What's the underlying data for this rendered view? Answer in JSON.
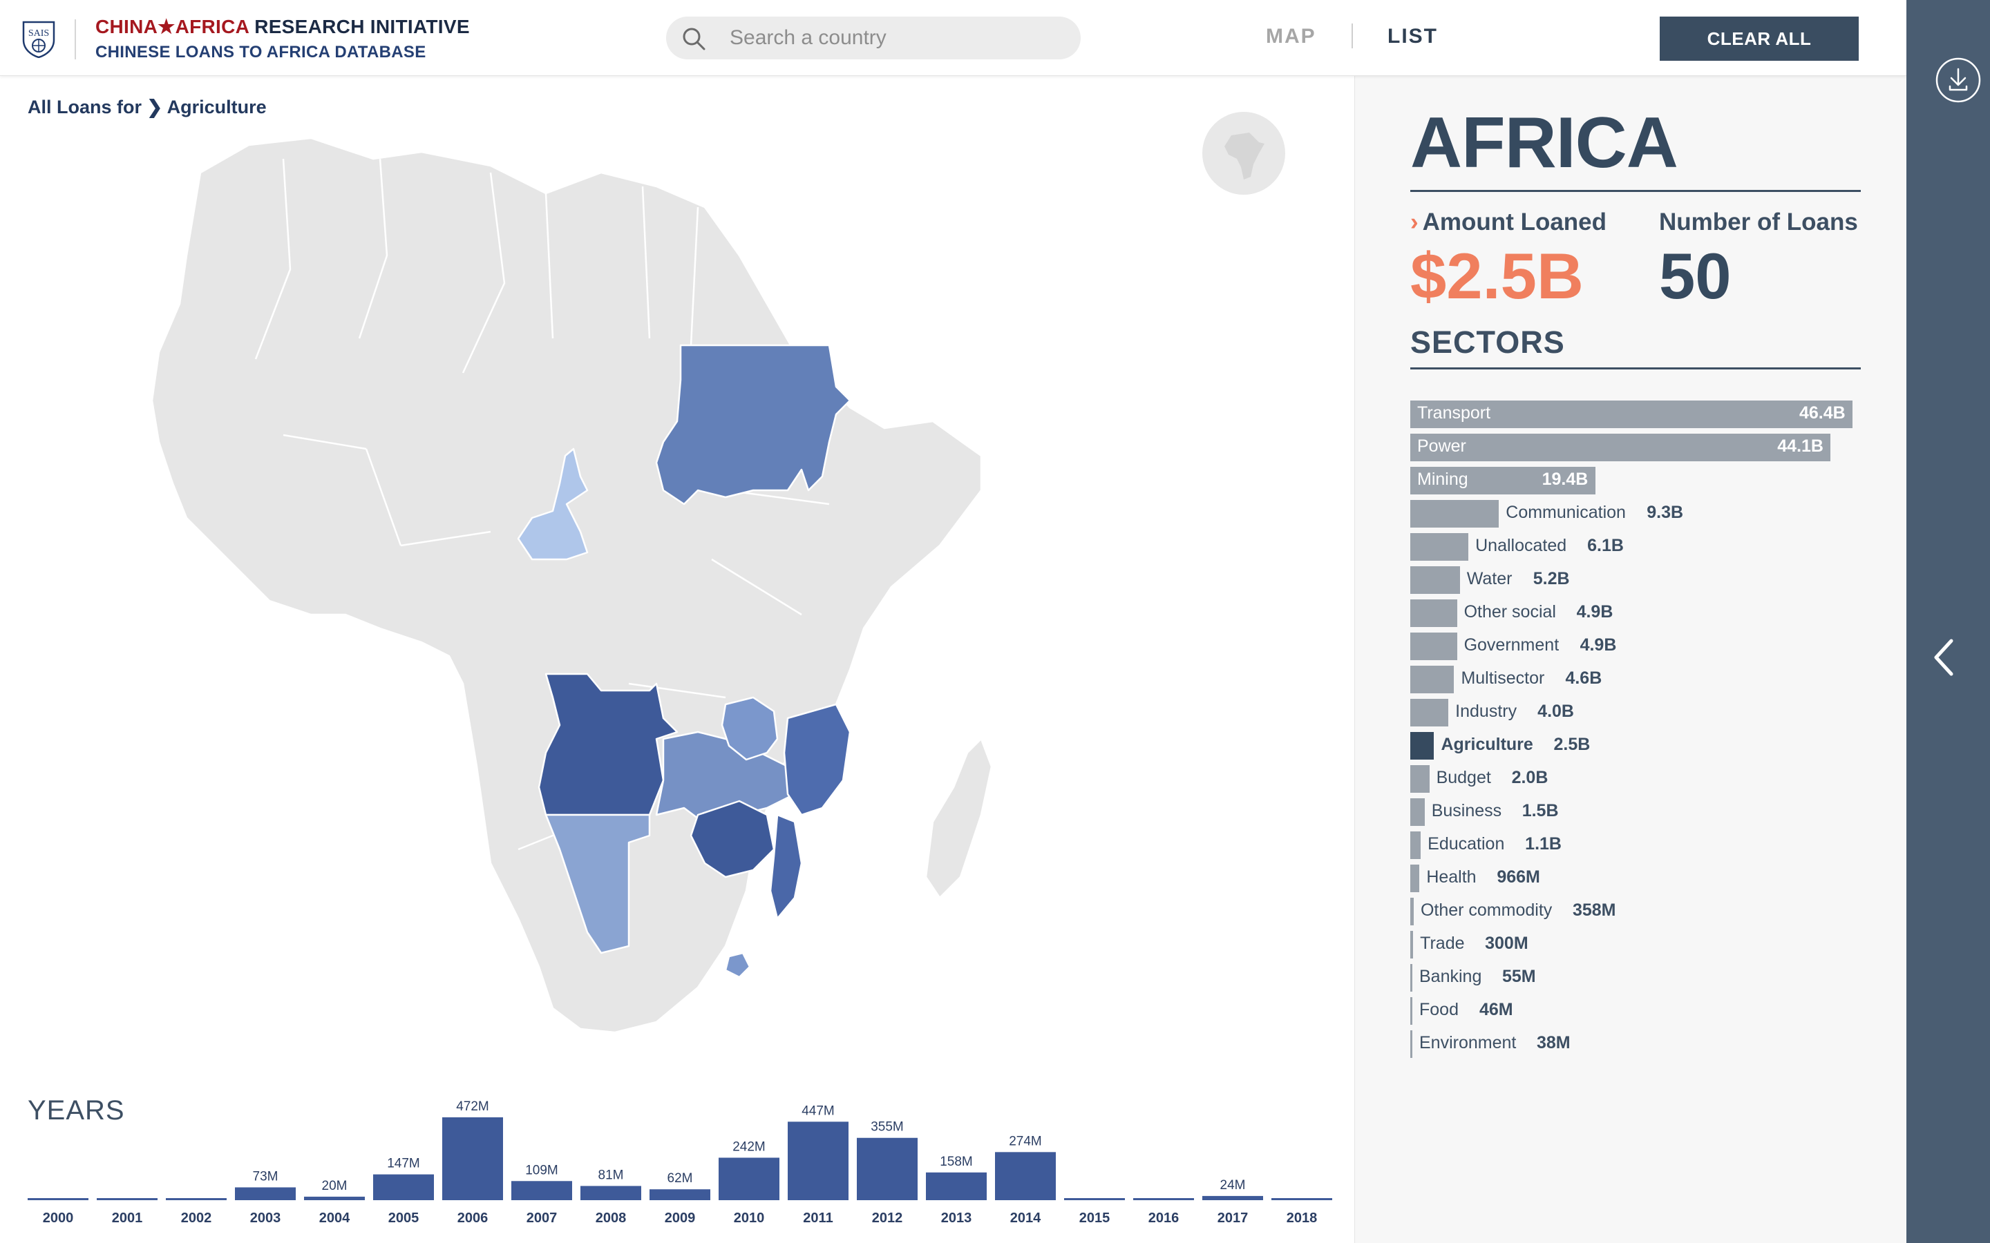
{
  "header": {
    "logo_text": "SAIS",
    "title_red": "CHINA★AFRICA",
    "title_dark": "RESEARCH INITIATIVE",
    "subtitle": "CHINESE LOANS TO AFRICA DATABASE",
    "search_placeholder": "Search a country",
    "tab_map": "MAP",
    "tab_list": "LIST",
    "clear_label": "CLEAR ALL"
  },
  "map_view": {
    "breadcrumb_prefix": "All Loans for",
    "breadcrumb_current": "Agriculture",
    "highlight_colors": {
      "sudan": "#6380b8",
      "cameroon": "#afc6ea",
      "angola": "#3e5a99",
      "zambia": "#7691c5",
      "malawi": "#7b97cc",
      "mozambique": "#4a67a8",
      "tanzania_coast": "#4e6cae",
      "zimbabwe": "#3e5a99",
      "namibia": "#8aa4d2",
      "eswatini": "#7b97cc",
      "base": "#e6e6e6"
    }
  },
  "years": {
    "title": "YEARS",
    "bar_color": "#3e5a99",
    "items": [
      {
        "year": "2000",
        "value": 0,
        "label": ""
      },
      {
        "year": "2001",
        "value": 0,
        "label": ""
      },
      {
        "year": "2002",
        "value": 0,
        "label": ""
      },
      {
        "year": "2003",
        "value": 73,
        "label": "73M"
      },
      {
        "year": "2004",
        "value": 20,
        "label": "20M"
      },
      {
        "year": "2005",
        "value": 147,
        "label": "147M"
      },
      {
        "year": "2006",
        "value": 472,
        "label": "472M"
      },
      {
        "year": "2007",
        "value": 109,
        "label": "109M"
      },
      {
        "year": "2008",
        "value": 81,
        "label": "81M"
      },
      {
        "year": "2009",
        "value": 62,
        "label": "62M"
      },
      {
        "year": "2010",
        "value": 242,
        "label": "242M"
      },
      {
        "year": "2011",
        "value": 447,
        "label": "447M"
      },
      {
        "year": "2012",
        "value": 355,
        "label": "355M"
      },
      {
        "year": "2013",
        "value": 158,
        "label": "158M"
      },
      {
        "year": "2014",
        "value": 274,
        "label": "274M"
      },
      {
        "year": "2015",
        "value": 0,
        "label": ""
      },
      {
        "year": "2016",
        "value": 0,
        "label": ""
      },
      {
        "year": "2017",
        "value": 24,
        "label": "24M"
      },
      {
        "year": "2018",
        "value": 0,
        "label": ""
      }
    ]
  },
  "panel": {
    "region": "AFRICA",
    "amount_label": "Amount Loaned",
    "amount_value": "$2.5B",
    "count_label": "Number of Loans",
    "count_value": "50",
    "sectors_title": "SECTORS",
    "selected_sector": "Agriculture",
    "sectors": [
      {
        "name": "Transport",
        "value": 46.4,
        "label": "46.4B"
      },
      {
        "name": "Power",
        "value": 44.1,
        "label": "44.1B"
      },
      {
        "name": "Mining",
        "value": 19.4,
        "label": "19.4B"
      },
      {
        "name": "Communication",
        "value": 9.3,
        "label": "9.3B"
      },
      {
        "name": "Unallocated",
        "value": 6.1,
        "label": "6.1B"
      },
      {
        "name": "Water",
        "value": 5.2,
        "label": "5.2B"
      },
      {
        "name": "Other social",
        "value": 4.9,
        "label": "4.9B"
      },
      {
        "name": "Government",
        "value": 4.9,
        "label": "4.9B"
      },
      {
        "name": "Multisector",
        "value": 4.6,
        "label": "4.6B"
      },
      {
        "name": "Industry",
        "value": 4.0,
        "label": "4.0B"
      },
      {
        "name": "Agriculture",
        "value": 2.5,
        "label": "2.5B"
      },
      {
        "name": "Budget",
        "value": 2.0,
        "label": "2.0B"
      },
      {
        "name": "Business",
        "value": 1.5,
        "label": "1.5B"
      },
      {
        "name": "Education",
        "value": 1.1,
        "label": "1.1B"
      },
      {
        "name": "Health",
        "value": 0.966,
        "label": "966M"
      },
      {
        "name": "Other commodity",
        "value": 0.358,
        "label": "358M"
      },
      {
        "name": "Trade",
        "value": 0.3,
        "label": "300M"
      },
      {
        "name": "Banking",
        "value": 0.055,
        "label": "55M"
      },
      {
        "name": "Food",
        "value": 0.046,
        "label": "46M"
      },
      {
        "name": "Environment",
        "value": 0.038,
        "label": "38M"
      }
    ]
  },
  "icons": {
    "search": "search-icon",
    "download": "download-icon",
    "collapse": "chevron-left-icon",
    "globe": "africa-globe-icon",
    "logo": "sais-shield-logo"
  }
}
